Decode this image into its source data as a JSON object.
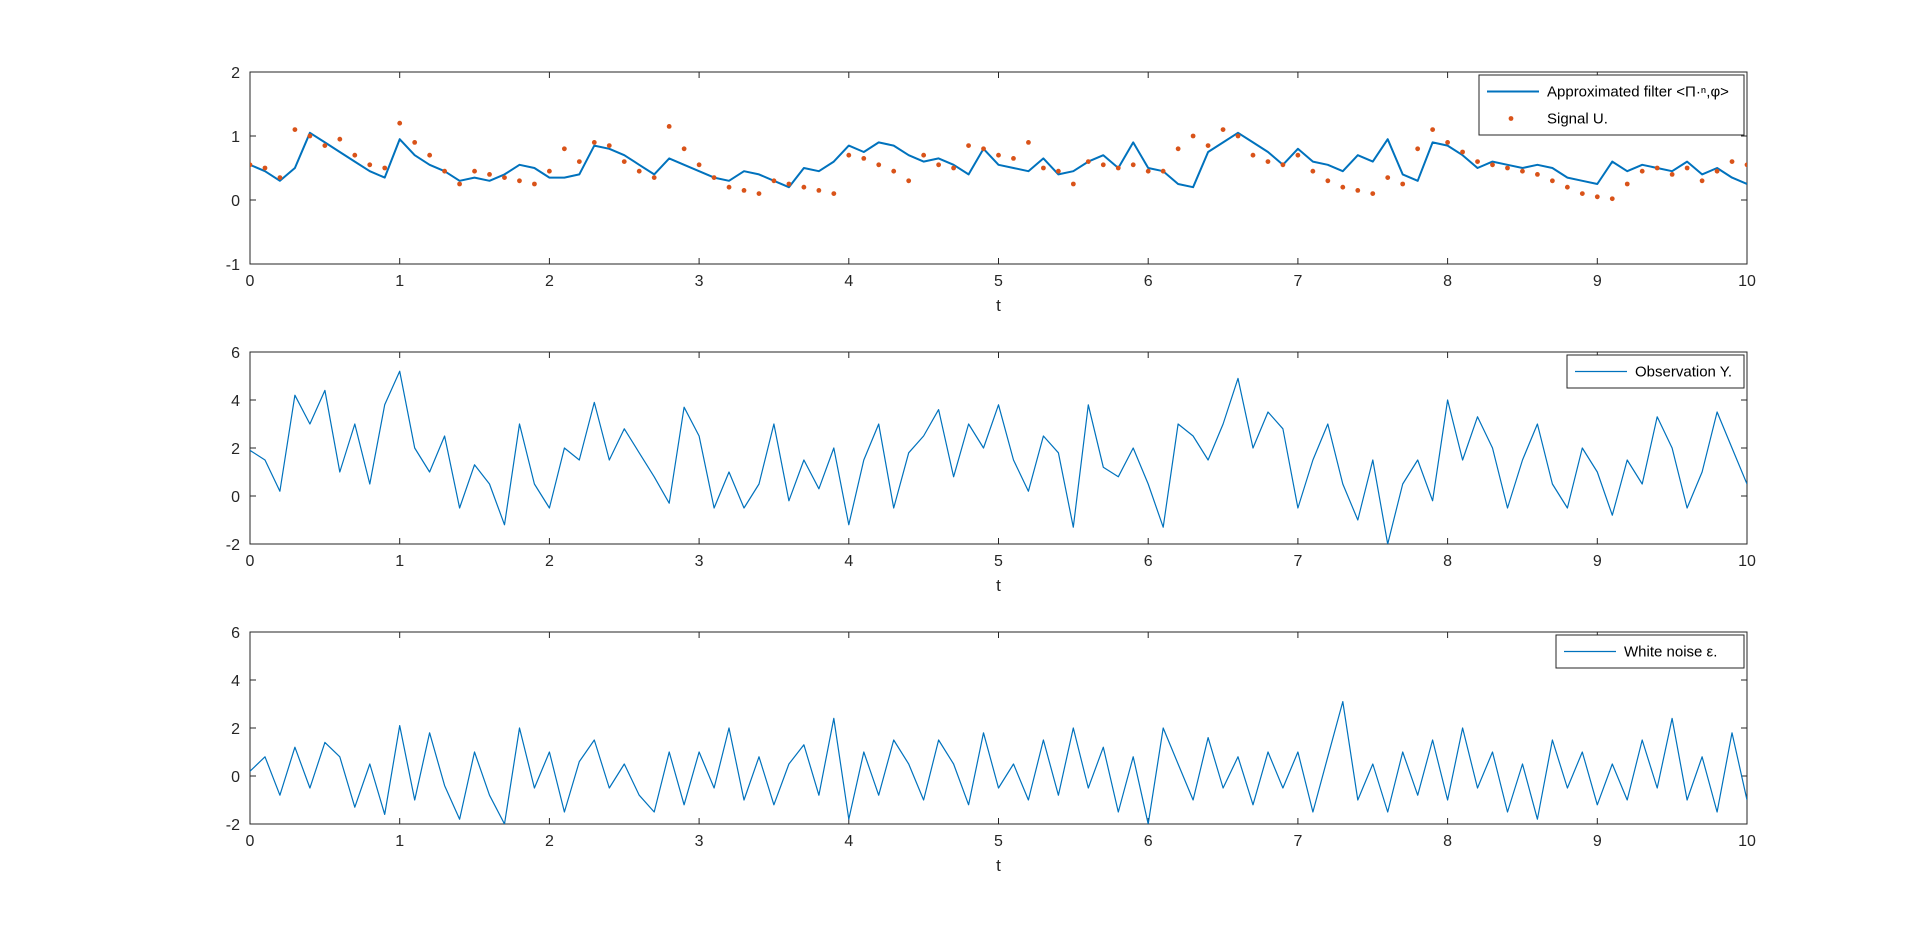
{
  "chart_data": [
    {
      "type": "line",
      "xlabel": "t",
      "xlim": [
        0,
        10
      ],
      "ylim": [
        -1,
        2
      ],
      "xticks": [
        0,
        1,
        2,
        3,
        4,
        5,
        6,
        7,
        8,
        9,
        10
      ],
      "yticks": [
        -1,
        0,
        1,
        2
      ],
      "legend_position": "top-right",
      "series": [
        {
          "name": "Approximated filter <Π·ⁿ,φ>",
          "style": "line",
          "color": "#0072bd",
          "x": [
            0,
            0.1,
            0.2,
            0.3,
            0.4,
            0.5,
            0.6,
            0.7,
            0.8,
            0.9,
            1.0,
            1.1,
            1.2,
            1.3,
            1.4,
            1.5,
            1.6,
            1.7,
            1.8,
            1.9,
            2.0,
            2.1,
            2.2,
            2.3,
            2.4,
            2.5,
            2.6,
            2.7,
            2.8,
            2.9,
            3.0,
            3.1,
            3.2,
            3.3,
            3.4,
            3.5,
            3.6,
            3.7,
            3.8,
            3.9,
            4.0,
            4.1,
            4.2,
            4.3,
            4.4,
            4.5,
            4.6,
            4.7,
            4.8,
            4.9,
            5.0,
            5.1,
            5.2,
            5.3,
            5.4,
            5.5,
            5.6,
            5.7,
            5.8,
            5.9,
            6.0,
            6.1,
            6.2,
            6.3,
            6.4,
            6.5,
            6.6,
            6.7,
            6.8,
            6.9,
            7.0,
            7.1,
            7.2,
            7.3,
            7.4,
            7.5,
            7.6,
            7.7,
            7.8,
            7.9,
            8.0,
            8.1,
            8.2,
            8.3,
            8.4,
            8.5,
            8.6,
            8.7,
            8.8,
            8.9,
            9.0,
            9.1,
            9.2,
            9.3,
            9.4,
            9.5,
            9.6,
            9.7,
            9.8,
            9.9,
            10.0
          ],
          "y": [
            0.55,
            0.45,
            0.3,
            0.5,
            1.05,
            0.9,
            0.75,
            0.6,
            0.45,
            0.35,
            0.95,
            0.7,
            0.55,
            0.45,
            0.3,
            0.35,
            0.3,
            0.4,
            0.55,
            0.5,
            0.35,
            0.35,
            0.4,
            0.85,
            0.8,
            0.7,
            0.55,
            0.4,
            0.65,
            0.55,
            0.45,
            0.35,
            0.3,
            0.45,
            0.4,
            0.3,
            0.2,
            0.5,
            0.45,
            0.6,
            0.85,
            0.75,
            0.9,
            0.85,
            0.7,
            0.6,
            0.65,
            0.55,
            0.4,
            0.8,
            0.55,
            0.5,
            0.45,
            0.65,
            0.4,
            0.45,
            0.6,
            0.7,
            0.5,
            0.9,
            0.5,
            0.45,
            0.25,
            0.2,
            0.75,
            0.9,
            1.05,
            0.9,
            0.75,
            0.55,
            0.8,
            0.6,
            0.55,
            0.45,
            0.7,
            0.6,
            0.95,
            0.4,
            0.3,
            0.9,
            0.85,
            0.7,
            0.5,
            0.6,
            0.55,
            0.5,
            0.55,
            0.5,
            0.35,
            0.3,
            0.25,
            0.6,
            0.45,
            0.55,
            0.5,
            0.45,
            0.6,
            0.4,
            0.5,
            0.35,
            0.25
          ]
        },
        {
          "name": "Signal U.",
          "style": "dots",
          "color": "#d95319",
          "x": [
            0,
            0.1,
            0.2,
            0.3,
            0.4,
            0.5,
            0.6,
            0.7,
            0.8,
            0.9,
            1.0,
            1.1,
            1.2,
            1.3,
            1.4,
            1.5,
            1.6,
            1.7,
            1.8,
            1.9,
            2.0,
            2.1,
            2.2,
            2.3,
            2.4,
            2.5,
            2.6,
            2.7,
            2.8,
            2.9,
            3.0,
            3.1,
            3.2,
            3.3,
            3.4,
            3.5,
            3.6,
            3.7,
            3.8,
            3.9,
            4.0,
            4.1,
            4.2,
            4.3,
            4.4,
            4.5,
            4.6,
            4.7,
            4.8,
            4.9,
            5.0,
            5.1,
            5.2,
            5.3,
            5.4,
            5.5,
            5.6,
            5.7,
            5.8,
            5.9,
            6.0,
            6.1,
            6.2,
            6.3,
            6.4,
            6.5,
            6.6,
            6.7,
            6.8,
            6.9,
            7.0,
            7.1,
            7.2,
            7.3,
            7.4,
            7.5,
            7.6,
            7.7,
            7.8,
            7.9,
            8.0,
            8.1,
            8.2,
            8.3,
            8.4,
            8.5,
            8.6,
            8.7,
            8.8,
            8.9,
            9.0,
            9.1,
            9.2,
            9.3,
            9.4,
            9.5,
            9.6,
            9.7,
            9.8,
            9.9,
            10.0
          ],
          "y": [
            0.55,
            0.5,
            0.35,
            1.1,
            1.0,
            0.85,
            0.95,
            0.7,
            0.55,
            0.5,
            1.2,
            0.9,
            0.7,
            0.45,
            0.25,
            0.45,
            0.4,
            0.35,
            0.3,
            0.25,
            0.45,
            0.8,
            0.6,
            0.9,
            0.85,
            0.6,
            0.45,
            0.35,
            1.15,
            0.8,
            0.55,
            0.35,
            0.2,
            0.15,
            0.1,
            0.3,
            0.25,
            0.2,
            0.15,
            0.1,
            0.7,
            0.65,
            0.55,
            0.45,
            0.3,
            0.7,
            0.55,
            0.5,
            0.85,
            0.8,
            0.7,
            0.65,
            0.9,
            0.5,
            0.45,
            0.25,
            0.6,
            0.55,
            0.5,
            0.55,
            0.45,
            0.45,
            0.8,
            1.0,
            0.85,
            1.1,
            1.0,
            0.7,
            0.6,
            0.55,
            0.7,
            0.45,
            0.3,
            0.2,
            0.15,
            0.1,
            0.35,
            0.25,
            0.8,
            1.1,
            0.9,
            0.75,
            0.6,
            0.55,
            0.5,
            0.45,
            0.4,
            0.3,
            0.2,
            0.1,
            0.05,
            0.02,
            0.25,
            0.45,
            0.5,
            0.4,
            0.5,
            0.3,
            0.45,
            0.6,
            0.55
          ]
        }
      ]
    },
    {
      "type": "line",
      "xlabel": "t",
      "xlim": [
        0,
        10
      ],
      "ylim": [
        -2,
        6
      ],
      "xticks": [
        0,
        1,
        2,
        3,
        4,
        5,
        6,
        7,
        8,
        9,
        10
      ],
      "yticks": [
        -2,
        0,
        2,
        4,
        6
      ],
      "legend_position": "top-right",
      "series": [
        {
          "name": "Observation Y.",
          "style": "line",
          "color": "#0072bd",
          "x": [
            0,
            0.1,
            0.2,
            0.3,
            0.4,
            0.5,
            0.6,
            0.7,
            0.8,
            0.9,
            1.0,
            1.1,
            1.2,
            1.3,
            1.4,
            1.5,
            1.6,
            1.7,
            1.8,
            1.9,
            2.0,
            2.1,
            2.2,
            2.3,
            2.4,
            2.5,
            2.6,
            2.7,
            2.8,
            2.9,
            3.0,
            3.1,
            3.2,
            3.3,
            3.4,
            3.5,
            3.6,
            3.7,
            3.8,
            3.9,
            4.0,
            4.1,
            4.2,
            4.3,
            4.4,
            4.5,
            4.6,
            4.7,
            4.8,
            4.9,
            5.0,
            5.1,
            5.2,
            5.3,
            5.4,
            5.5,
            5.6,
            5.7,
            5.8,
            5.9,
            6.0,
            6.1,
            6.2,
            6.3,
            6.4,
            6.5,
            6.6,
            6.7,
            6.8,
            6.9,
            7.0,
            7.1,
            7.2,
            7.3,
            7.4,
            7.5,
            7.6,
            7.7,
            7.8,
            7.9,
            8.0,
            8.1,
            8.2,
            8.3,
            8.4,
            8.5,
            8.6,
            8.7,
            8.8,
            8.9,
            9.0,
            9.1,
            9.2,
            9.3,
            9.4,
            9.5,
            9.6,
            9.7,
            9.8,
            9.9,
            10.0
          ],
          "y": [
            1.9,
            1.5,
            0.2,
            4.2,
            3.0,
            4.4,
            1.0,
            3.0,
            0.5,
            3.8,
            5.2,
            2.0,
            1.0,
            2.5,
            -0.5,
            1.3,
            0.5,
            -1.2,
            3.0,
            0.5,
            -0.5,
            2.0,
            1.5,
            3.9,
            1.5,
            2.8,
            1.8,
            0.8,
            -0.3,
            3.7,
            2.5,
            -0.5,
            1.0,
            -0.5,
            0.5,
            3.0,
            -0.2,
            1.5,
            0.3,
            2.0,
            -1.2,
            1.5,
            3.0,
            -0.5,
            1.8,
            2.5,
            3.6,
            0.8,
            3.0,
            2.0,
            3.8,
            1.5,
            0.2,
            2.5,
            1.8,
            -1.3,
            3.8,
            1.2,
            0.8,
            2.0,
            0.5,
            -1.3,
            3.0,
            2.5,
            1.5,
            3.0,
            4.9,
            2.0,
            3.5,
            2.8,
            -0.5,
            1.5,
            3.0,
            0.5,
            -1.0,
            1.5,
            -2.0,
            0.5,
            1.5,
            -0.2,
            4.0,
            1.5,
            3.3,
            2.0,
            -0.5,
            1.5,
            3.0,
            0.5,
            -0.5,
            2.0,
            1.0,
            -0.8,
            1.5,
            0.5,
            3.3,
            2.0,
            -0.5,
            1.0,
            3.5,
            2.0,
            0.5
          ]
        }
      ]
    },
    {
      "type": "line",
      "xlabel": "t",
      "xlim": [
        0,
        10
      ],
      "ylim": [
        -2,
        6
      ],
      "xticks": [
        0,
        1,
        2,
        3,
        4,
        5,
        6,
        7,
        8,
        9,
        10
      ],
      "yticks": [
        -2,
        0,
        2,
        4,
        6
      ],
      "legend_position": "top-right",
      "series": [
        {
          "name": "White noise ε.",
          "style": "line",
          "color": "#0072bd",
          "x": [
            0,
            0.1,
            0.2,
            0.3,
            0.4,
            0.5,
            0.6,
            0.7,
            0.8,
            0.9,
            1.0,
            1.1,
            1.2,
            1.3,
            1.4,
            1.5,
            1.6,
            1.7,
            1.8,
            1.9,
            2.0,
            2.1,
            2.2,
            2.3,
            2.4,
            2.5,
            2.6,
            2.7,
            2.8,
            2.9,
            3.0,
            3.1,
            3.2,
            3.3,
            3.4,
            3.5,
            3.6,
            3.7,
            3.8,
            3.9,
            4.0,
            4.1,
            4.2,
            4.3,
            4.4,
            4.5,
            4.6,
            4.7,
            4.8,
            4.9,
            5.0,
            5.1,
            5.2,
            5.3,
            5.4,
            5.5,
            5.6,
            5.7,
            5.8,
            5.9,
            6.0,
            6.1,
            6.2,
            6.3,
            6.4,
            6.5,
            6.6,
            6.7,
            6.8,
            6.9,
            7.0,
            7.1,
            7.2,
            7.3,
            7.4,
            7.5,
            7.6,
            7.7,
            7.8,
            7.9,
            8.0,
            8.1,
            8.2,
            8.3,
            8.4,
            8.5,
            8.6,
            8.7,
            8.8,
            8.9,
            9.0,
            9.1,
            9.2,
            9.3,
            9.4,
            9.5,
            9.6,
            9.7,
            9.8,
            9.9,
            10.0
          ],
          "y": [
            0.2,
            0.8,
            -0.8,
            1.2,
            -0.5,
            1.4,
            0.8,
            -1.3,
            0.5,
            -1.6,
            2.1,
            -1.0,
            1.8,
            -0.4,
            -1.8,
            1.0,
            -0.8,
            -2.0,
            2.0,
            -0.5,
            1.0,
            -1.5,
            0.6,
            1.5,
            -0.5,
            0.5,
            -0.8,
            -1.5,
            1.0,
            -1.2,
            1.0,
            -0.5,
            2.0,
            -1.0,
            0.8,
            -1.2,
            0.5,
            1.3,
            -0.8,
            2.4,
            -1.8,
            1.0,
            -0.8,
            1.5,
            0.5,
            -1.0,
            1.5,
            0.5,
            -1.2,
            1.8,
            -0.5,
            0.5,
            -1.0,
            1.5,
            -0.8,
            2.0,
            -0.5,
            1.2,
            -1.5,
            0.8,
            -2.0,
            2.0,
            0.5,
            -1.0,
            1.6,
            -0.5,
            0.8,
            -1.2,
            1.0,
            -0.5,
            1.0,
            -1.5,
            0.8,
            3.1,
            -1.0,
            0.5,
            -1.5,
            1.0,
            -0.8,
            1.5,
            -1.0,
            2.0,
            -0.5,
            1.0,
            -1.5,
            0.5,
            -1.8,
            1.5,
            -0.5,
            1.0,
            -1.2,
            0.5,
            -1.0,
            1.5,
            -0.5,
            2.4,
            -1.0,
            0.8,
            -1.5,
            1.8,
            -1.0
          ]
        }
      ]
    }
  ]
}
